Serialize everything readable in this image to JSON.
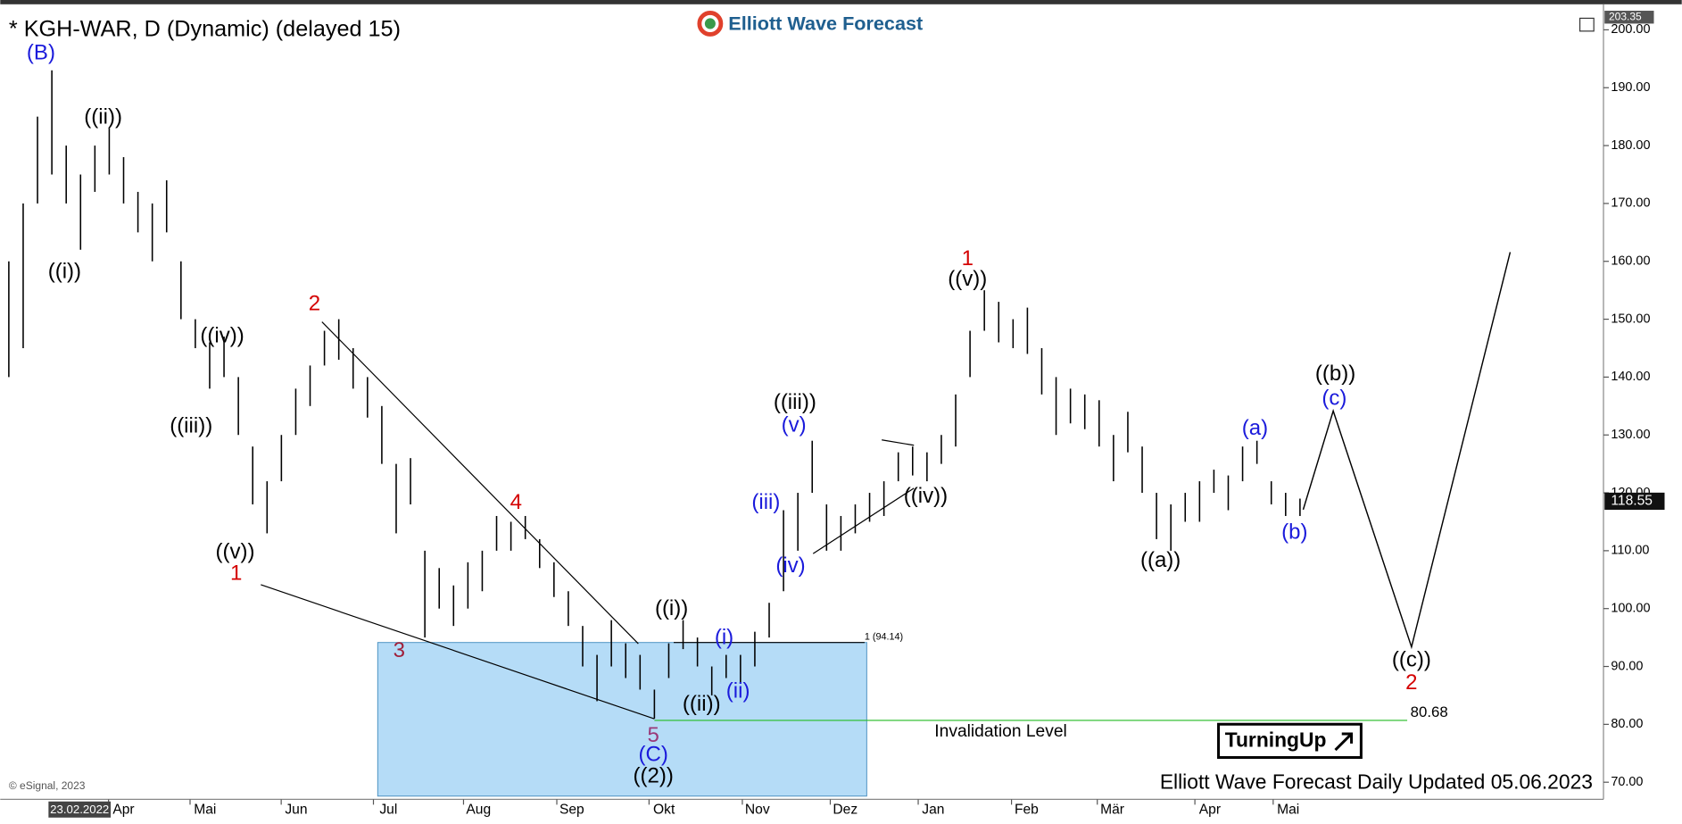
{
  "chart_data": {
    "type": "ohlc",
    "title": "* KGH-WAR, D (Dynamic) (delayed 15)",
    "brand": "Elliott Wave Forecast",
    "footer": "Elliott Wave Forecast Daily Updated 05.06.2023",
    "copyright": "© eSignal, 2023",
    "start_date": "23.02.2022",
    "categories": [
      "Apr",
      "Mai",
      "Jun",
      "Jul",
      "Aug",
      "Sep",
      "Okt",
      "Nov",
      "Dez",
      "Jan",
      "Feb",
      "Mär",
      "Apr",
      "Mai"
    ],
    "ylim": [
      67.6,
      203.3
    ],
    "yticks": [
      {
        "value": 70,
        "label": "70.00"
      },
      {
        "value": 80,
        "label": "80.00"
      },
      {
        "value": 90,
        "label": "90.00"
      },
      {
        "value": 100,
        "label": "100.00"
      },
      {
        "value": 110,
        "label": "110.00"
      },
      {
        "value": 120,
        "label": "120.00"
      },
      {
        "value": 130,
        "label": "130.00"
      },
      {
        "value": 140,
        "label": "140.00"
      },
      {
        "value": 150,
        "label": "150.00"
      },
      {
        "value": 160,
        "label": "160.00"
      },
      {
        "value": 170,
        "label": "170.00"
      },
      {
        "value": 180,
        "label": "180.00"
      },
      {
        "value": 190,
        "label": "190.00"
      },
      {
        "value": 200,
        "label": "200.00"
      }
    ],
    "color": "#000000",
    "high": [
      160,
      170,
      185,
      193,
      180,
      175,
      180,
      183,
      178,
      172,
      170,
      174,
      160,
      150,
      146,
      147,
      140,
      128,
      122,
      130,
      138,
      142,
      148,
      150,
      145,
      140,
      135,
      125,
      126,
      110,
      107,
      104,
      108,
      110,
      116,
      115,
      116,
      112,
      108,
      103,
      97,
      92,
      98,
      94,
      92,
      86,
      94,
      98,
      95,
      90,
      92,
      92,
      96,
      101,
      117,
      120,
      129,
      118,
      116,
      118,
      120,
      122,
      127,
      128,
      127,
      130,
      137,
      148,
      155,
      153,
      150,
      152,
      145,
      140,
      138,
      137,
      136,
      130,
      134,
      128,
      120,
      118,
      120,
      122,
      124,
      123,
      128,
      129,
      122,
      120,
      119
    ],
    "low": [
      140,
      145,
      170,
      175,
      170,
      162,
      172,
      175,
      170,
      165,
      160,
      165,
      150,
      145,
      138,
      140,
      130,
      118,
      113,
      122,
      130,
      135,
      142,
      143,
      138,
      133,
      125,
      113,
      118,
      95,
      100,
      97,
      100,
      103,
      110,
      110,
      112,
      107,
      102,
      97,
      90,
      84,
      90,
      88,
      86,
      81,
      88,
      93,
      90,
      85,
      88,
      87,
      90,
      95,
      103,
      110,
      120,
      110,
      110,
      113,
      115,
      116,
      122,
      123,
      122,
      125,
      128,
      140,
      148,
      146,
      145,
      144,
      137,
      130,
      132,
      131,
      128,
      122,
      127,
      120,
      112,
      110,
      115,
      115,
      120,
      117,
      122,
      125,
      118,
      116,
      116
    ],
    "last_price": 118.55,
    "top_price": 203.35,
    "fib_level": 94.14,
    "fib_label": "1 (94.14)",
    "invalidation_level": 80.68,
    "invalidation_text": "Invalidation Level",
    "zone_color": "#b5dcf7",
    "badge": "TurningUp",
    "wave_labels": [
      {
        "text": "(B)",
        "color": "#1a1adb"
      },
      {
        "text": "((ii))",
        "color": "#000000"
      },
      {
        "text": "((i))",
        "color": "#000000"
      },
      {
        "text": "((iv))",
        "color": "#000000"
      },
      {
        "text": "((iii))",
        "color": "#000000"
      },
      {
        "text": "((v))",
        "color": "#000000"
      },
      {
        "text": "1",
        "color": "#d40000"
      },
      {
        "text": "2",
        "color": "#d40000"
      },
      {
        "text": "3",
        "color": "#a0203a"
      },
      {
        "text": "4",
        "color": "#d40000"
      },
      {
        "text": "5",
        "color": "#9a3a7a"
      },
      {
        "text": "(C)",
        "color": "#1a1adb"
      },
      {
        "text": "((2))",
        "color": "#000000"
      },
      {
        "text": "((i))",
        "color": "#000000"
      },
      {
        "text": "(i)",
        "color": "#1a1adb"
      },
      {
        "text": "((ii))",
        "color": "#000000"
      },
      {
        "text": "(ii)",
        "color": "#1a1adb"
      },
      {
        "text": "((iii))",
        "color": "#000000"
      },
      {
        "text": "(v)",
        "color": "#1a1adb"
      },
      {
        "text": "(iii)",
        "color": "#1a1adb"
      },
      {
        "text": "(iv)",
        "color": "#1a1adb"
      },
      {
        "text": "((iv))",
        "color": "#000000"
      },
      {
        "text": "1",
        "color": "#d40000"
      },
      {
        "text": "((v))",
        "color": "#000000"
      },
      {
        "text": "((a))",
        "color": "#000000"
      },
      {
        "text": "(a)",
        "color": "#1a1adb"
      },
      {
        "text": "(b)",
        "color": "#1a1adb"
      },
      {
        "text": "((b))",
        "color": "#000000"
      },
      {
        "text": "(c)",
        "color": "#1a1adb"
      },
      {
        "text": "((c))",
        "color": "#000000"
      },
      {
        "text": "2",
        "color": "#d40000"
      }
    ]
  }
}
